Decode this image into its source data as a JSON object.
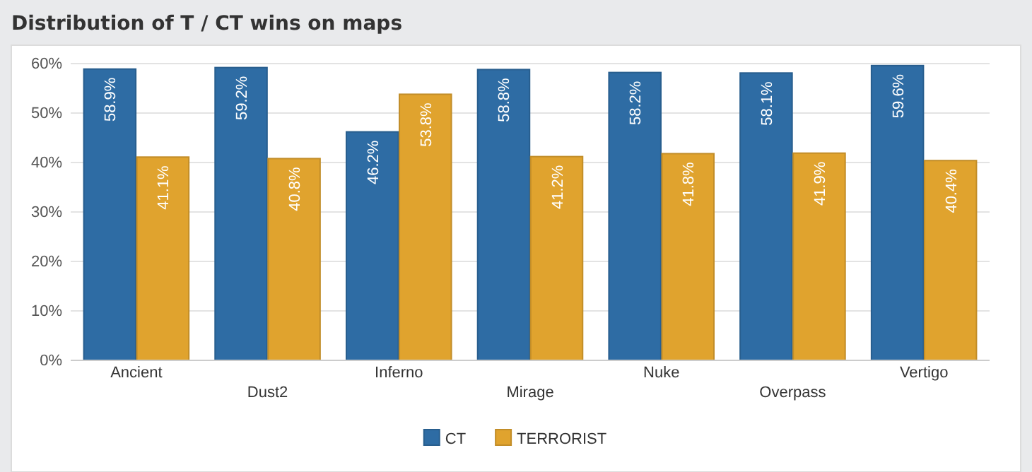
{
  "chart_data": {
    "type": "bar",
    "title": "Distribution of T / CT wins on maps",
    "categories": [
      "Ancient",
      "Dust2",
      "Inferno",
      "Mirage",
      "Nuke",
      "Overpass",
      "Vertigo"
    ],
    "series": [
      {
        "name": "CT",
        "color": "#2e6ca4",
        "values": [
          58.9,
          59.2,
          46.2,
          58.8,
          58.2,
          58.1,
          59.6
        ],
        "value_labels": [
          "58.9%",
          "59.2%",
          "46.2%",
          "58.8%",
          "58.2%",
          "58.1%",
          "59.6%"
        ]
      },
      {
        "name": "TERRORIST",
        "color": "#e0a32e",
        "values": [
          41.1,
          40.8,
          53.8,
          41.2,
          41.8,
          41.9,
          40.4
        ],
        "value_labels": [
          "41.1%",
          "40.8%",
          "53.8%",
          "41.2%",
          "41.8%",
          "41.9%",
          "40.4%"
        ]
      }
    ],
    "ylim": [
      0,
      60
    ],
    "yticks": [
      {
        "value": 0,
        "label": "0%"
      },
      {
        "value": 10,
        "label": "10%"
      },
      {
        "value": 20,
        "label": "20%"
      },
      {
        "value": 30,
        "label": "30%"
      },
      {
        "value": 40,
        "label": "40%"
      },
      {
        "value": 50,
        "label": "50%"
      },
      {
        "value": 60,
        "label": "60%"
      }
    ],
    "grid": "y",
    "legend": "bottom"
  }
}
